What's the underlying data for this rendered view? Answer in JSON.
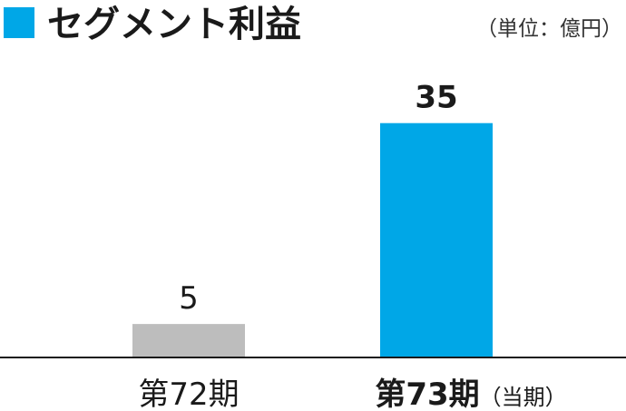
{
  "colors": {
    "accent": "#00a7e7",
    "previous": "#bdbdbd",
    "text": "#1a1a1a",
    "axis": "#1a1a1a"
  },
  "chart_data": {
    "type": "bar",
    "title": "セグメント利益",
    "unit": "（単位：億円）",
    "categories": [
      "第72期",
      "第73期"
    ],
    "category_notes": [
      "",
      "（当期）"
    ],
    "values": [
      5,
      35
    ],
    "value_labels": [
      "5",
      "35"
    ],
    "highlight_index": 1,
    "ylim": [
      0,
      40
    ],
    "grid": false,
    "legend": "none"
  }
}
